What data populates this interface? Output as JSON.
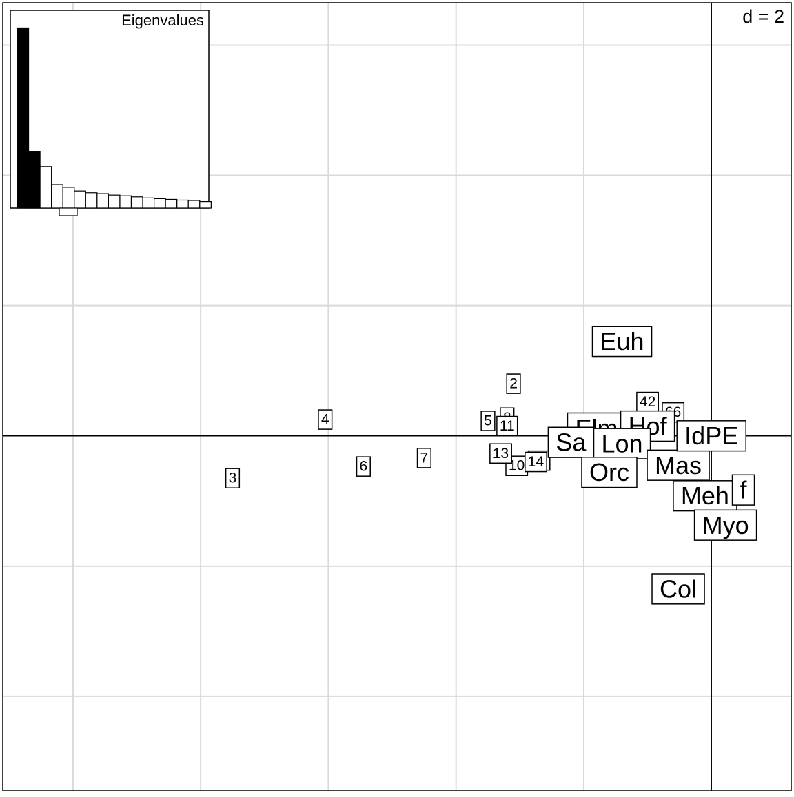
{
  "chart_data": [
    {
      "type": "scatter",
      "title": "",
      "grid_label": "d = 2",
      "grid": true,
      "grid_step": 2,
      "xlim": [
        -11.1,
        1.25
      ],
      "ylim": [
        -5.45,
        6.65
      ],
      "axes_cross_at": [
        0,
        0
      ],
      "row_points": [
        {
          "label": "2",
          "x": -3.1,
          "y": 0.8
        },
        {
          "label": "3",
          "x": -7.5,
          "y": -0.65
        },
        {
          "label": "4",
          "x": -6.05,
          "y": 0.25
        },
        {
          "label": "5",
          "x": -3.5,
          "y": 0.23
        },
        {
          "label": "6",
          "x": -5.45,
          "y": -0.47
        },
        {
          "label": "7",
          "x": -4.5,
          "y": -0.34
        },
        {
          "label": "8",
          "x": -3.2,
          "y": 0.28
        },
        {
          "label": "10",
          "x": -3.05,
          "y": -0.46
        },
        {
          "label": "11",
          "x": -3.2,
          "y": 0.15
        },
        {
          "label": "12",
          "x": -2.7,
          "y": -0.38
        },
        {
          "label": "13",
          "x": -3.3,
          "y": -0.27
        },
        {
          "label": "14",
          "x": -2.75,
          "y": -0.4
        },
        {
          "label": "42",
          "x": -1.0,
          "y": 0.52
        },
        {
          "label": "66",
          "x": -0.6,
          "y": 0.36
        }
      ],
      "column_points": [
        {
          "label": "Euh",
          "x": -1.4,
          "y": 1.45
        },
        {
          "label": "Elm",
          "x": -1.8,
          "y": 0.12
        },
        {
          "label": "Sa",
          "x": -2.2,
          "y": -0.1
        },
        {
          "label": "Hof",
          "x": -1.0,
          "y": 0.15
        },
        {
          "label": "Lon",
          "x": -1.4,
          "y": -0.12
        },
        {
          "label": "Orc",
          "x": -1.6,
          "y": -0.56
        },
        {
          "label": "Mas",
          "x": -0.52,
          "y": -0.45
        },
        {
          "label": "IdPE",
          "x": 0.0,
          "y": 0.0
        },
        {
          "label": "Meh",
          "x": -0.1,
          "y": -0.92
        },
        {
          "label": "f",
          "x": 0.5,
          "y": -0.83
        },
        {
          "label": "Myo",
          "x": 0.22,
          "y": -1.37
        },
        {
          "label": "Col",
          "x": -0.52,
          "y": -2.35
        }
      ]
    },
    {
      "type": "bar",
      "title": "Eigenvalues",
      "values": [
        10.0,
        3.15,
        2.3,
        1.3,
        1.15,
        0.95,
        0.85,
        0.8,
        0.72,
        0.68,
        0.62,
        0.56,
        0.52,
        0.48,
        0.44,
        0.42,
        0.36
      ],
      "highlighted_count": 2,
      "ylim": [
        0,
        10.4
      ],
      "colors": {
        "highlighted": "#000000",
        "other": "#ffffff",
        "border": "#000000"
      }
    }
  ],
  "colors": {
    "grid": "#d9d9d9",
    "axis": "#000000",
    "label_border": "#000000",
    "label_fill": "#ffffff",
    "text": "#000000"
  }
}
